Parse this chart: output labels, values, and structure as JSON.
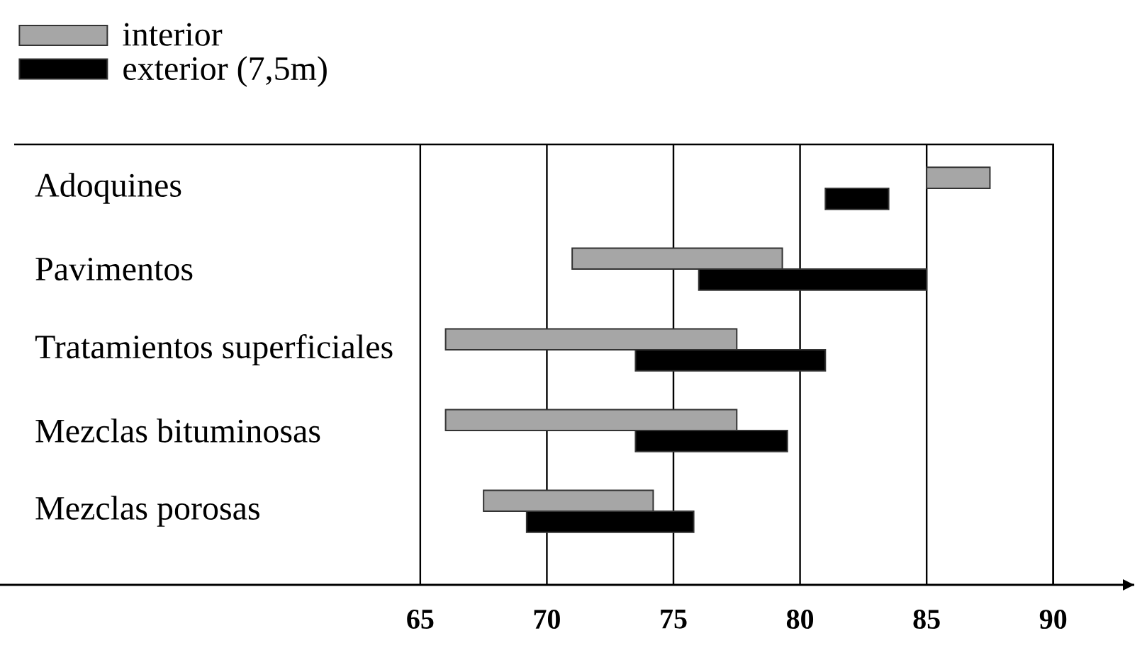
{
  "chart_data": {
    "type": "bar",
    "orientation": "horizontal",
    "categories": [
      "Adoquines",
      "Pavimentos",
      "Tratamientos superficiales",
      "Mezclas bituminosas",
      "Mezclas porosas"
    ],
    "series": [
      {
        "name": "interior",
        "color": "#a6a6a6",
        "base": [
          85,
          71,
          66,
          66,
          67.5
        ],
        "values": [
          2.5,
          8.3,
          11.5,
          11.5,
          6.7
        ]
      },
      {
        "name": "exterior (7,5m)",
        "color": "#000000",
        "base": [
          81,
          76,
          73.5,
          73.5,
          69.2
        ],
        "values": [
          2.5,
          9,
          7.5,
          6,
          6.6
        ]
      }
    ],
    "xlim": [
      48.4,
      93.2
    ],
    "xticks": [
      65,
      70,
      75,
      80,
      85,
      90
    ],
    "grid": "x",
    "legend": "top left"
  }
}
